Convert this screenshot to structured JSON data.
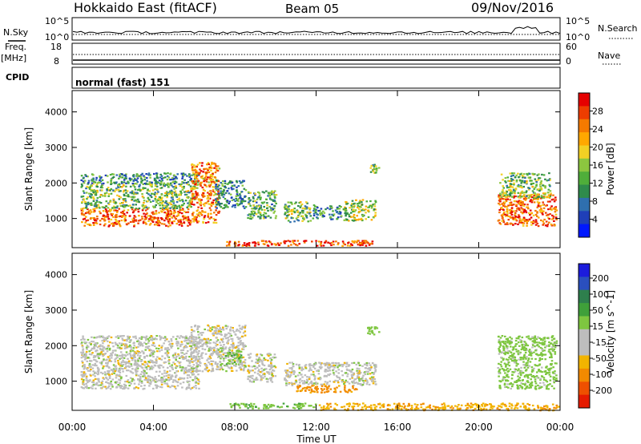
{
  "header": {
    "station": "Hokkaido East (fitACF)",
    "beam": "Beam 05",
    "date": "09/Nov/2016"
  },
  "strip": {
    "nsky_label": "N.Sky",
    "nsky_ticks": [
      "10^5",
      "10^0"
    ],
    "nsearch_label": "N.Search",
    "nsearch_ticks": [
      "10^5",
      "10^0"
    ],
    "freq_label": "Freq.",
    "freq_unit": "[MHz]",
    "freq_ticks": [
      "18",
      "8"
    ],
    "nave_label": "Nave",
    "nave_ticks": [
      "60",
      "0"
    ],
    "cpid_label": "CPID",
    "cpid_value": "normal (fast) 151"
  },
  "axes": {
    "ylabel": "Slant Range [km]",
    "xlabel": "Time UT",
    "yticks": [
      "1000",
      "2000",
      "3000",
      "4000"
    ],
    "xticks": [
      "00:00",
      "04:00",
      "08:00",
      "12:00",
      "16:00",
      "20:00",
      "00:00"
    ]
  },
  "colorbars": {
    "power": {
      "label": "Power [dB]",
      "ticks": [
        "4",
        "8",
        "12",
        "16",
        "20",
        "24",
        "28"
      ],
      "colors": [
        "#0018ff",
        "#1f3fb8",
        "#2f6fae",
        "#2f8b4c",
        "#4fae3a",
        "#8cc63f",
        "#f2d024",
        "#ffa800",
        "#f47a00",
        "#ee3d00",
        "#e50000"
      ]
    },
    "velocity": {
      "label": "Velocity [m s^-1]",
      "ticks": [
        "200",
        "100",
        "50",
        "15",
        "-15",
        "-50",
        "-100",
        "-200"
      ],
      "colors": [
        "#1c1cdc",
        "#2a4fbe",
        "#2e7f4d",
        "#3fa03a",
        "#7ec640",
        "#bdbdbd",
        "#bdbdbd",
        "#f2b400",
        "#f28a00",
        "#ee5000",
        "#e51b00"
      ]
    }
  },
  "chart_data": [
    {
      "type": "heatmap",
      "title": "Power",
      "xlabel": "Time UT",
      "ylabel": "Slant Range [km]",
      "xlim": [
        0,
        24
      ],
      "ylim": [
        180,
        4600
      ],
      "colorbar": "Power [dB]",
      "clim": [
        0,
        32
      ],
      "regions": [
        {
          "t0": 0.4,
          "t1": 5.8,
          "r0": 800,
          "r1": 1300,
          "value": 26
        },
        {
          "t0": 0.4,
          "t1": 6.0,
          "r0": 1300,
          "r1": 2000,
          "value": 14
        },
        {
          "t0": 0.4,
          "t1": 6.2,
          "r0": 2000,
          "r1": 2300,
          "value": 10
        },
        {
          "t0": 5.8,
          "t1": 7.2,
          "r0": 900,
          "r1": 2600,
          "value": 24
        },
        {
          "t0": 7.0,
          "t1": 8.5,
          "r0": 1300,
          "r1": 2100,
          "value": 10
        },
        {
          "t0": 8.6,
          "t1": 10.0,
          "r0": 1000,
          "r1": 1800,
          "value": 12
        },
        {
          "t0": 10.4,
          "t1": 11.7,
          "r0": 900,
          "r1": 1500,
          "value": 14
        },
        {
          "t0": 11.8,
          "t1": 13.2,
          "r0": 1000,
          "r1": 1400,
          "value": 10
        },
        {
          "t0": 13.3,
          "t1": 14.9,
          "r0": 950,
          "r1": 1550,
          "value": 16
        },
        {
          "t0": 14.5,
          "t1": 15.1,
          "r0": 2300,
          "r1": 2550,
          "value": 14
        },
        {
          "t0": 7.5,
          "t1": 14.8,
          "r0": 250,
          "r1": 400,
          "value": 28
        },
        {
          "t0": 20.9,
          "t1": 23.8,
          "r0": 800,
          "r1": 1700,
          "value": 26
        },
        {
          "t0": 21.0,
          "t1": 23.5,
          "r0": 1600,
          "r1": 2300,
          "value": 14
        }
      ]
    },
    {
      "type": "heatmap",
      "title": "Velocity",
      "xlabel": "Time UT",
      "ylabel": "Slant Range [km]",
      "xlim": [
        0,
        24
      ],
      "ylim": [
        180,
        4600
      ],
      "colorbar": "Velocity [m s^-1]",
      "clim": [
        -250,
        250
      ],
      "regions": [
        {
          "t0": 0.4,
          "t1": 6.2,
          "r0": 800,
          "r1": 2300,
          "value": 0
        },
        {
          "t0": 5.8,
          "t1": 8.5,
          "r0": 1300,
          "r1": 2600,
          "value": 0
        },
        {
          "t0": 7.5,
          "t1": 8.3,
          "r0": 1500,
          "r1": 1900,
          "value": 40
        },
        {
          "t0": 8.6,
          "t1": 10.0,
          "r0": 1000,
          "r1": 1800,
          "value": 0
        },
        {
          "t0": 10.4,
          "t1": 14.9,
          "r0": 900,
          "r1": 1550,
          "value": 0
        },
        {
          "t0": 11.0,
          "t1": 14.0,
          "r0": 700,
          "r1": 900,
          "value": -60
        },
        {
          "t0": 14.5,
          "t1": 15.1,
          "r0": 2300,
          "r1": 2550,
          "value": 30
        },
        {
          "t0": 7.5,
          "t1": 12.0,
          "r0": 250,
          "r1": 400,
          "value": 40
        },
        {
          "t0": 12.0,
          "t1": 23.9,
          "r0": 200,
          "r1": 400,
          "value": -40
        },
        {
          "t0": 20.9,
          "t1": 23.8,
          "r0": 800,
          "r1": 2300,
          "value": 30
        }
      ]
    }
  ]
}
